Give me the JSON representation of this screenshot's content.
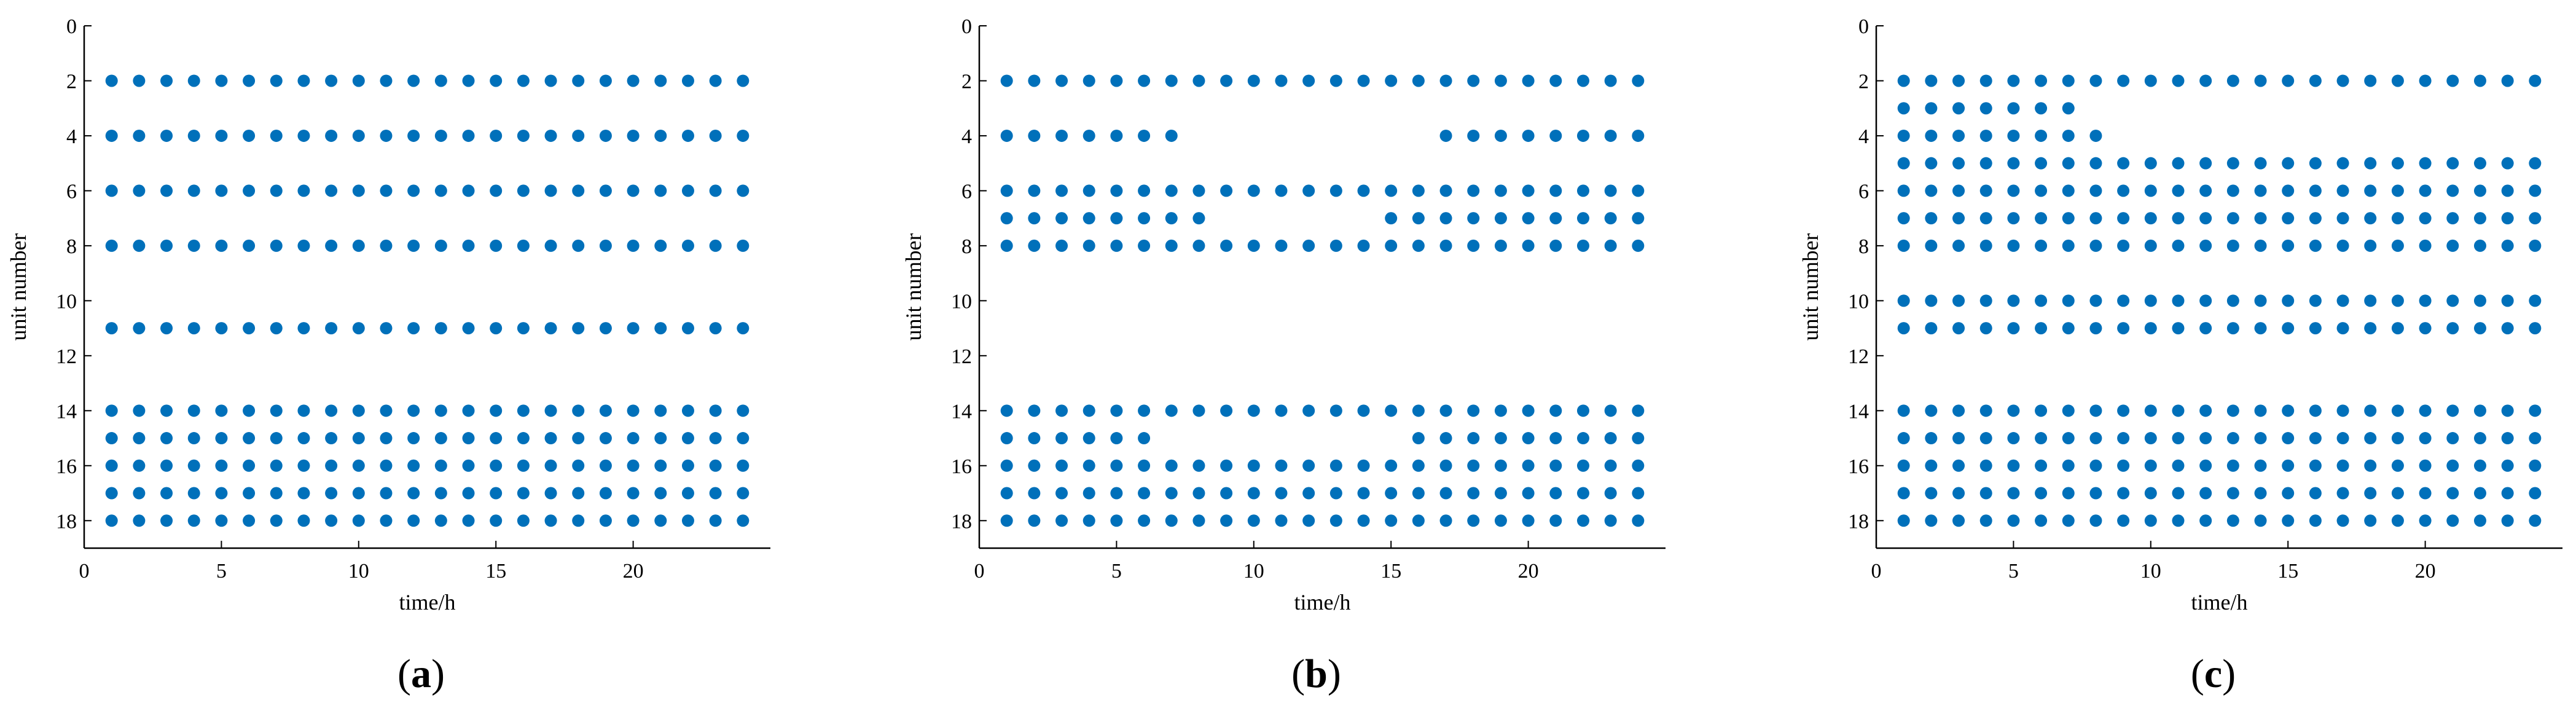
{
  "figure": {
    "panels": [
      "a",
      "b",
      "c"
    ]
  },
  "chart_data": [
    {
      "type": "scatter",
      "panel_label": "a",
      "xlabel": "time/h",
      "ylabel": "unit number",
      "xlim": [
        0,
        25
      ],
      "ylim": [
        0,
        19
      ],
      "y_inverted": true,
      "xticks": [
        0,
        5,
        10,
        15,
        20
      ],
      "yticks": [
        0,
        2,
        4,
        6,
        8,
        10,
        12,
        14,
        16,
        18
      ],
      "marker_color": "#0070BA",
      "grid": false,
      "series": [
        {
          "units": [
            2
          ],
          "hours": [
            1,
            24
          ]
        },
        {
          "units": [
            4
          ],
          "hours": [
            1,
            24
          ]
        },
        {
          "units": [
            6
          ],
          "hours": [
            1,
            24
          ]
        },
        {
          "units": [
            8
          ],
          "hours": [
            1,
            24
          ]
        },
        {
          "units": [
            11
          ],
          "hours": [
            1,
            24
          ]
        },
        {
          "units": [
            14
          ],
          "hours": [
            1,
            24
          ]
        },
        {
          "units": [
            15
          ],
          "hours": [
            1,
            24
          ]
        },
        {
          "units": [
            16
          ],
          "hours": [
            1,
            24
          ]
        },
        {
          "units": [
            17
          ],
          "hours": [
            1,
            24
          ]
        },
        {
          "units": [
            18
          ],
          "hours": [
            1,
            24
          ]
        }
      ]
    },
    {
      "type": "scatter",
      "panel_label": "b",
      "xlabel": "time/h",
      "ylabel": "unit number",
      "xlim": [
        0,
        25
      ],
      "ylim": [
        0,
        19
      ],
      "y_inverted": true,
      "xticks": [
        0,
        5,
        10,
        15,
        20
      ],
      "yticks": [
        0,
        2,
        4,
        6,
        8,
        10,
        12,
        14,
        16,
        18
      ],
      "marker_color": "#0070BA",
      "grid": false,
      "series": [
        {
          "units": [
            2
          ],
          "hours": [
            1,
            24
          ]
        },
        {
          "units": [
            4
          ],
          "hours": [
            1,
            7
          ]
        },
        {
          "units": [
            4
          ],
          "hours": [
            17,
            24
          ]
        },
        {
          "units": [
            6
          ],
          "hours": [
            1,
            24
          ]
        },
        {
          "units": [
            7
          ],
          "hours": [
            1,
            8
          ]
        },
        {
          "units": [
            7
          ],
          "hours": [
            15,
            24
          ]
        },
        {
          "units": [
            8
          ],
          "hours": [
            1,
            24
          ]
        },
        {
          "units": [
            14
          ],
          "hours": [
            1,
            24
          ]
        },
        {
          "units": [
            15
          ],
          "hours": [
            1,
            6
          ]
        },
        {
          "units": [
            15
          ],
          "hours": [
            16,
            24
          ]
        },
        {
          "units": [
            16
          ],
          "hours": [
            1,
            24
          ]
        },
        {
          "units": [
            17
          ],
          "hours": [
            1,
            24
          ]
        },
        {
          "units": [
            18
          ],
          "hours": [
            1,
            24
          ]
        }
      ]
    },
    {
      "type": "scatter",
      "panel_label": "c",
      "xlabel": "time/h",
      "ylabel": "unit number",
      "xlim": [
        0,
        25
      ],
      "ylim": [
        0,
        19
      ],
      "y_inverted": true,
      "xticks": [
        0,
        5,
        10,
        15,
        20
      ],
      "yticks": [
        0,
        2,
        4,
        6,
        8,
        10,
        12,
        14,
        16,
        18
      ],
      "marker_color": "#0070BA",
      "grid": false,
      "series": [
        {
          "units": [
            2
          ],
          "hours": [
            1,
            24
          ]
        },
        {
          "units": [
            3
          ],
          "hours": [
            1,
            7
          ]
        },
        {
          "units": [
            4
          ],
          "hours": [
            1,
            8
          ]
        },
        {
          "units": [
            5
          ],
          "hours": [
            1,
            24
          ]
        },
        {
          "units": [
            6
          ],
          "hours": [
            1,
            24
          ]
        },
        {
          "units": [
            7
          ],
          "hours": [
            1,
            24
          ]
        },
        {
          "units": [
            8
          ],
          "hours": [
            1,
            24
          ]
        },
        {
          "units": [
            10
          ],
          "hours": [
            1,
            24
          ]
        },
        {
          "units": [
            11
          ],
          "hours": [
            1,
            24
          ]
        },
        {
          "units": [
            14
          ],
          "hours": [
            1,
            24
          ]
        },
        {
          "units": [
            15
          ],
          "hours": [
            1,
            24
          ]
        },
        {
          "units": [
            16
          ],
          "hours": [
            1,
            24
          ]
        },
        {
          "units": [
            17
          ],
          "hours": [
            1,
            24
          ]
        },
        {
          "units": [
            18
          ],
          "hours": [
            1,
            24
          ]
        }
      ]
    }
  ]
}
